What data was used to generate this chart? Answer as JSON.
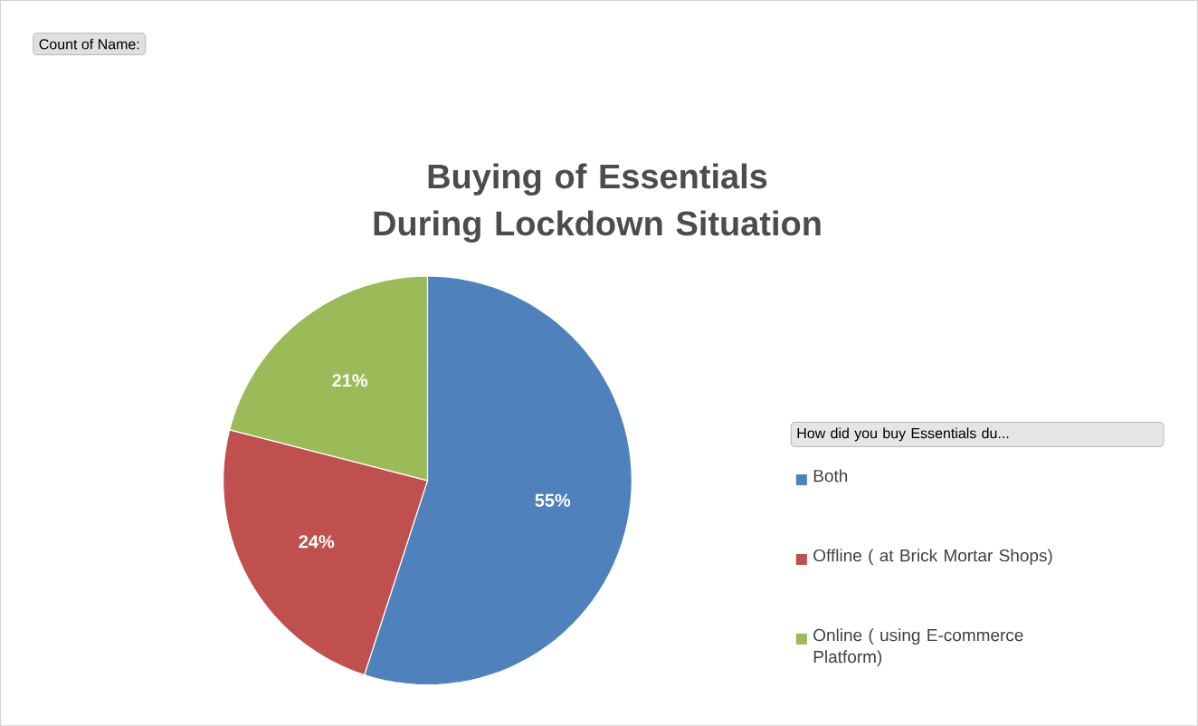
{
  "chart_data": {
    "type": "pie",
    "title": "Buying of Essentials During Lockdown Situation",
    "categories": [
      "Both",
      "Offline ( at Brick Mortar Shops)",
      "Online ( using E-commerce Platform)"
    ],
    "values": [
      55,
      24,
      21
    ],
    "value_labels": [
      "55%",
      "24%",
      "21%"
    ],
    "colors": [
      "#4f81bd",
      "#c0504d",
      "#9bbb59"
    ],
    "legend_title": "How did you buy Essentials du...",
    "legend": "right",
    "annotations": [
      "Count of Name:"
    ]
  }
}
